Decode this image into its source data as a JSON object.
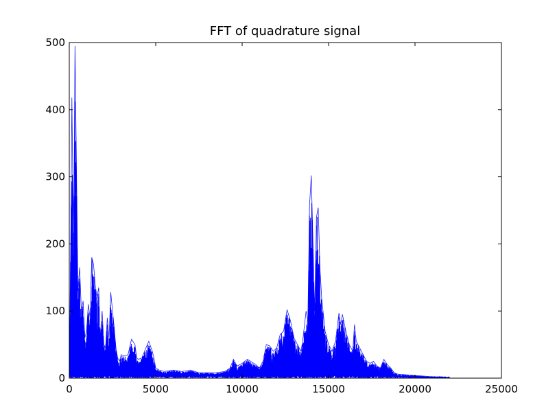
{
  "chart_data": {
    "type": "line",
    "title": "FFT of quadrature signal",
    "xlabel": "",
    "ylabel": "",
    "xlim": [
      0,
      25000
    ],
    "ylim": [
      0,
      500
    ],
    "x_ticks": [
      0,
      5000,
      10000,
      15000,
      20000,
      25000
    ],
    "y_ticks": [
      0,
      100,
      200,
      300,
      400,
      500
    ],
    "x_tick_labels": [
      "0",
      "5000",
      "10000",
      "15000",
      "20000",
      "25000"
    ],
    "y_tick_labels": [
      "0",
      "100",
      "200",
      "300",
      "400",
      "500"
    ],
    "grid": false,
    "legend": "none",
    "series": [
      {
        "color": "#0000ff",
        "x": [
          0,
          100,
          150,
          200,
          260,
          330,
          400,
          500,
          600,
          700,
          800,
          900,
          1000,
          1100,
          1200,
          1300,
          1400,
          1500,
          1600,
          1700,
          1800,
          1900,
          2000,
          2100,
          2200,
          2300,
          2400,
          2500,
          2600,
          2700,
          2800,
          2900,
          3000,
          3200,
          3400,
          3600,
          3800,
          3900,
          4000,
          4200,
          4400,
          4600,
          4800,
          4900,
          5000,
          5200,
          5500,
          6000,
          6500,
          7000,
          7500,
          8000,
          8500,
          9000,
          9300,
          9500,
          9700,
          10000,
          10300,
          10500,
          10800,
          11000,
          11200,
          11400,
          11600,
          11800,
          12000,
          12200,
          12400,
          12600,
          12800,
          13000,
          13200,
          13400,
          13500,
          13700,
          13800,
          13900,
          14000,
          14100,
          14200,
          14300,
          14400,
          14500,
          14600,
          14800,
          15000,
          15200,
          15400,
          15600,
          15700,
          15800,
          16000,
          16200,
          16400,
          16500,
          16600,
          16800,
          17000,
          17200,
          17400,
          17600,
          17800,
          18000,
          18200,
          18400,
          18600,
          18800,
          19000,
          19500,
          20000,
          20500,
          21000,
          21500,
          22000
        ],
        "y": [
          2,
          240,
          418,
          300,
          230,
          495,
          350,
          130,
          165,
          100,
          115,
          60,
          70,
          110,
          90,
          180,
          170,
          140,
          120,
          135,
          60,
          100,
          50,
          45,
          90,
          60,
          128,
          100,
          75,
          45,
          30,
          25,
          35,
          33,
          35,
          58,
          50,
          30,
          28,
          30,
          43,
          55,
          40,
          30,
          15,
          12,
          10,
          12,
          10,
          12,
          8,
          8,
          8,
          10,
          15,
          28,
          18,
          22,
          28,
          25,
          20,
          15,
          25,
          50,
          48,
          40,
          45,
          65,
          70,
          102,
          85,
          60,
          50,
          40,
          55,
          100,
          85,
          258,
          302,
          200,
          100,
          240,
          254,
          165,
          120,
          70,
          50,
          40,
          55,
          97,
          80,
          95,
          70,
          50,
          40,
          80,
          55,
          45,
          35,
          25,
          22,
          25,
          18,
          15,
          28,
          20,
          15,
          8,
          6,
          5,
          4,
          3,
          2,
          2,
          1
        ]
      }
    ]
  }
}
